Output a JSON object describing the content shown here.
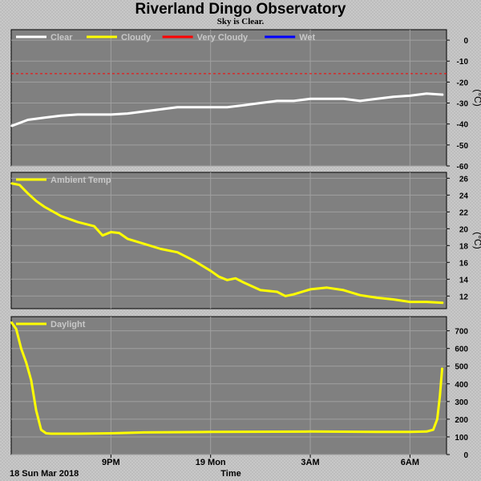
{
  "page": {
    "title": "Riverland Dingo Observatory",
    "subtitle": "Sky is Clear.",
    "date_label": "18 Sun Mar 2018",
    "time_label": "Time"
  },
  "colors": {
    "plot_bg": "#808080",
    "grid": "#a0a0a0",
    "clear": "#ffffff",
    "cloudy": "#ffff00",
    "very_cloudy": "#ff0000",
    "wet": "#0000ff"
  },
  "chart_data": [
    {
      "type": "line",
      "legend": [
        {
          "name": "Clear",
          "color": "#ffffff"
        },
        {
          "name": "Cloudy",
          "color": "#ffff00"
        },
        {
          "name": "Very Cloudy",
          "color": "#ff0000"
        },
        {
          "name": "Wet",
          "color": "#0000ff"
        }
      ],
      "ylabel": "(°C)",
      "yticks": [
        "0",
        "-10",
        "-20",
        "-30",
        "-40",
        "-50",
        "-60"
      ],
      "ylim": [
        -60,
        5
      ],
      "threshold": -16,
      "series": [
        {
          "name": "Clear",
          "color": "#ffffff",
          "x": [
            18.0,
            18.5,
            19.0,
            19.5,
            20.0,
            20.5,
            21.0,
            21.5,
            22.0,
            22.5,
            23.0,
            23.5,
            24.0,
            24.5,
            25.0,
            25.5,
            26.0,
            26.5,
            27.0,
            27.5,
            28.0,
            28.5,
            29.0,
            29.5,
            30.0,
            30.5,
            31.0
          ],
          "values": [
            -41,
            -38,
            -37,
            -36,
            -35.5,
            -35.5,
            -35.5,
            -35,
            -34,
            -33,
            -32,
            -32,
            -32,
            -32,
            -31,
            -30,
            -29,
            -29,
            -28,
            -28,
            -28,
            -29,
            -28,
            -27,
            -26.5,
            -25.5,
            -26
          ]
        }
      ]
    },
    {
      "type": "line",
      "legend": [
        {
          "name": "Ambient Temp",
          "color": "#ffff00"
        }
      ],
      "ylabel": "(°C)",
      "yticks": [
        "26",
        "24",
        "22",
        "20",
        "18",
        "16",
        "14",
        "12"
      ],
      "ylim": [
        10.5,
        26.7
      ],
      "series": [
        {
          "name": "Ambient Temp",
          "color": "#ffff00",
          "x": [
            18.0,
            18.25,
            18.5,
            18.75,
            19.0,
            19.5,
            20.0,
            20.5,
            20.75,
            21.0,
            21.25,
            21.5,
            22.0,
            22.5,
            23.0,
            23.5,
            24.0,
            24.25,
            24.5,
            24.75,
            25.0,
            25.5,
            26.0,
            26.25,
            26.5,
            27.0,
            27.5,
            28.0,
            28.5,
            29.0,
            29.5,
            30.0,
            30.5,
            31.0
          ],
          "values": [
            25.4,
            25.2,
            24.2,
            23.3,
            22.6,
            21.5,
            20.8,
            20.3,
            19.2,
            19.6,
            19.5,
            18.8,
            18.2,
            17.6,
            17.2,
            16.2,
            15.0,
            14.3,
            13.9,
            14.1,
            13.6,
            12.7,
            12.5,
            12.0,
            12.2,
            12.8,
            13.0,
            12.7,
            12.1,
            11.8,
            11.6,
            11.3,
            11.3,
            11.2
          ]
        }
      ]
    },
    {
      "type": "line",
      "legend": [
        {
          "name": "Daylight",
          "color": "#ffff00"
        }
      ],
      "yticks": [
        "700",
        "600",
        "500",
        "400",
        "300",
        "200",
        "100",
        "0"
      ],
      "ylim": [
        0,
        780
      ],
      "xticks": [
        "9PM",
        "19 Mon",
        "3AM",
        "6AM"
      ],
      "xtick_values": [
        21,
        24,
        27,
        30
      ],
      "xlim": [
        18.0,
        31.1
      ],
      "series": [
        {
          "name": "Daylight",
          "color": "#ffff00",
          "x": [
            18.0,
            18.15,
            18.3,
            18.45,
            18.6,
            18.75,
            18.9,
            19.05,
            19.2,
            19.35,
            19.5,
            20.0,
            21.0,
            22.0,
            24.0,
            27.0,
            29.0,
            30.0,
            30.5,
            30.7,
            30.82,
            30.9,
            30.97
          ],
          "values": [
            750,
            710,
            600,
            520,
            420,
            250,
            140,
            120,
            118,
            118,
            118,
            118,
            120,
            125,
            128,
            130,
            128,
            128,
            130,
            140,
            200,
            330,
            490
          ]
        }
      ]
    }
  ]
}
